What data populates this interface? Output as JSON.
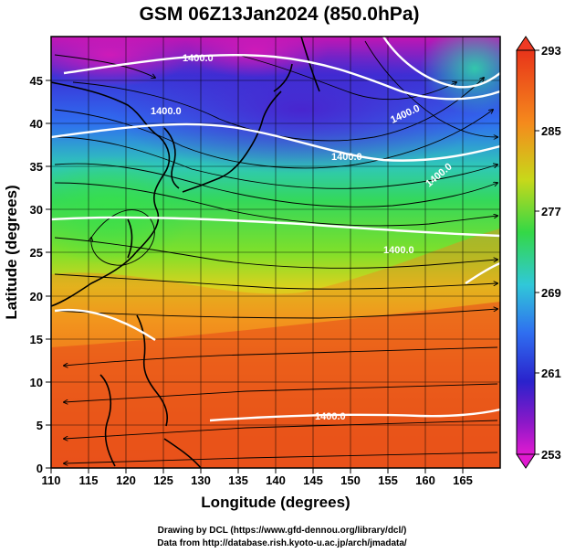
{
  "title": "GSM 06Z13Jan2024 (850.0hPa)",
  "xlabel": "Longitude (degrees)",
  "ylabel": "Latitude  (degrees)",
  "x_ticks": [
    "110",
    "115",
    "120",
    "125",
    "130",
    "135",
    "140",
    "145",
    "150",
    "155",
    "160",
    "165"
  ],
  "y_ticks": [
    "0",
    "5",
    "10",
    "15",
    "20",
    "25",
    "30",
    "35",
    "40",
    "45"
  ],
  "colorbar_ticks": [
    "293",
    "285",
    "277",
    "269",
    "261",
    "253"
  ],
  "contour_labels": [
    "1400.0",
    "1400.0",
    "1400.0",
    "1400.0",
    "1400.0",
    "1400.0",
    "1400.0"
  ],
  "credit_line1": "Drawing by DCL (https://www.gfd-dennou.org/library/dcl/)",
  "credit_line2": "Data from http://database.rish.kyoto-u.ac.jp/arch/jmadata/",
  "map": {
    "lon_range": [
      110,
      170
    ],
    "lat_range": [
      0,
      50
    ],
    "variable_range": [
      253,
      293
    ],
    "colormap": [
      "#d81bd2",
      "#2233dd",
      "#33aaff",
      "#2fd84a",
      "#f7c21c",
      "#e83818"
    ]
  }
}
